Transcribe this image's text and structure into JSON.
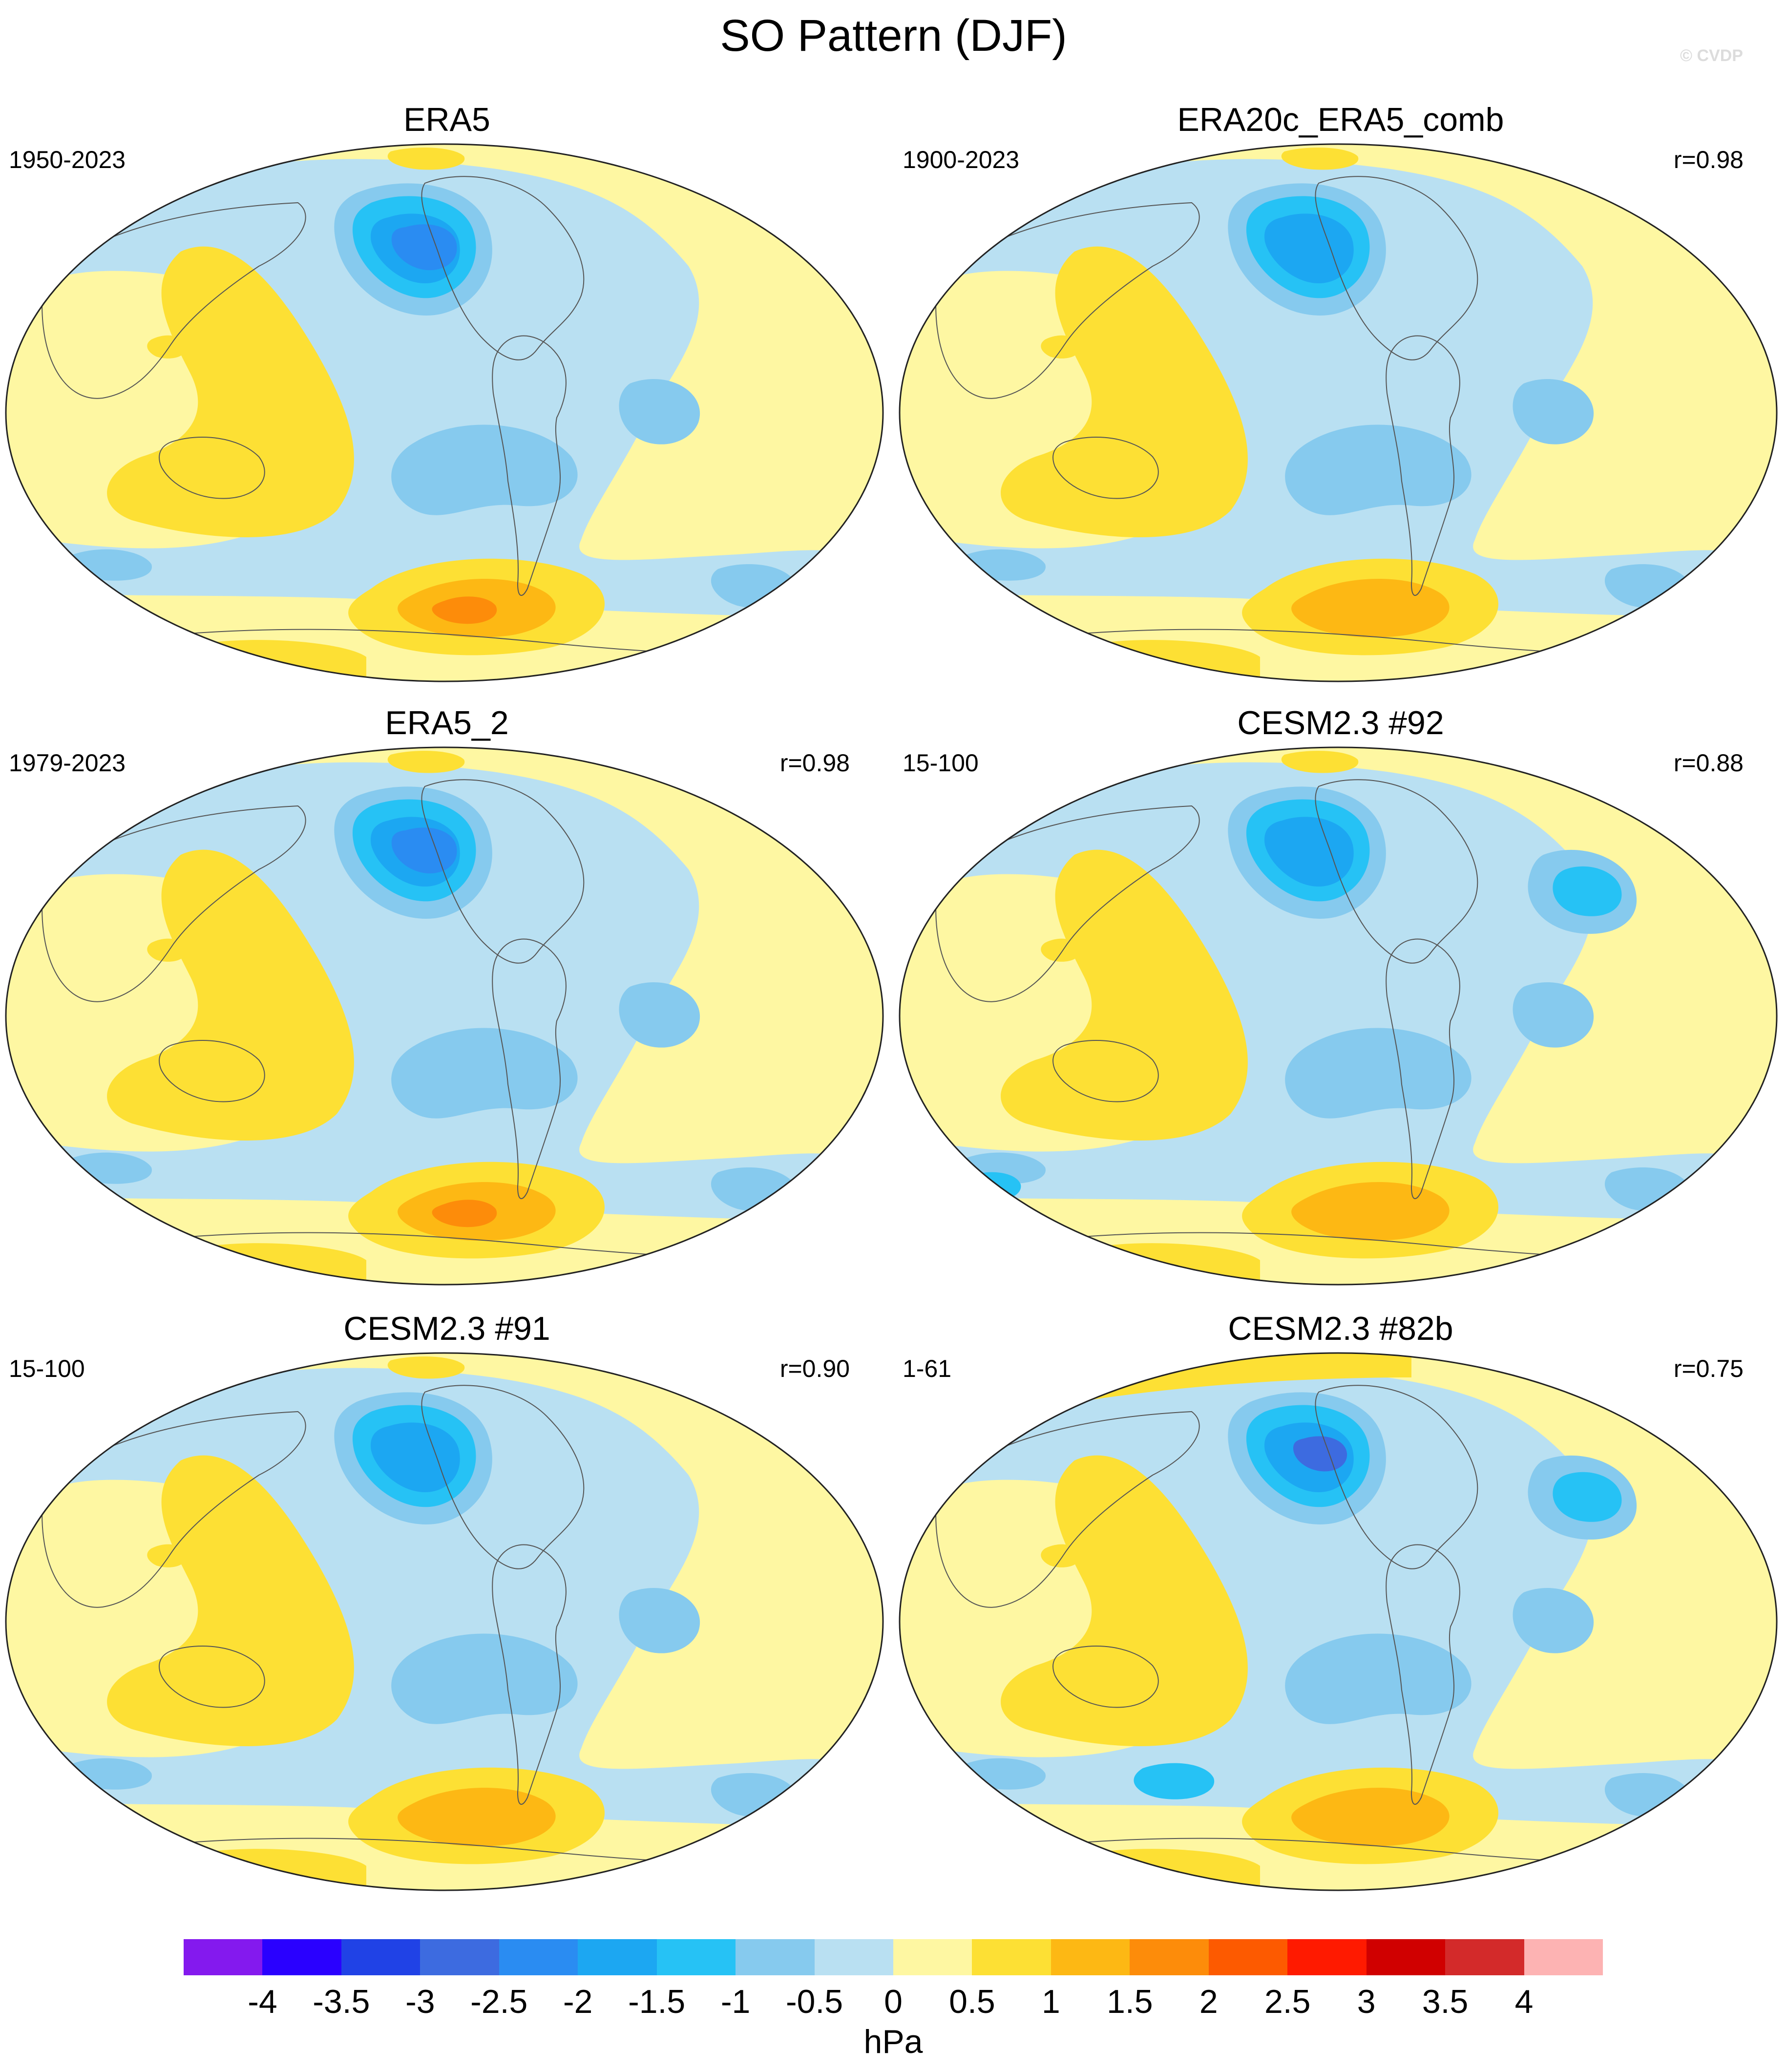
{
  "title": "SO Pattern (DJF)",
  "watermark": "© CVDP",
  "panels": [
    {
      "title": "ERA5",
      "period": "1950-2023",
      "correlation": ""
    },
    {
      "title": "ERA20c_ERA5_comb",
      "period": "1900-2023",
      "correlation": "r=0.98"
    },
    {
      "title": "ERA5_2",
      "period": "1979-2023",
      "correlation": "r=0.98"
    },
    {
      "title": "CESM2.3 #92",
      "period": "15-100",
      "correlation": "r=0.88"
    },
    {
      "title": "CESM2.3 #91",
      "period": "15-100",
      "correlation": "r=0.90"
    },
    {
      "title": "CESM2.3 #82b",
      "period": "1-61",
      "correlation": "r=0.75"
    }
  ],
  "colorbar": {
    "units": "hPa",
    "labels": [
      "-4",
      "-3.5",
      "-3",
      "-2.5",
      "-2",
      "-1.5",
      "-1",
      "-0.5",
      "0",
      "0.5",
      "1",
      "1.5",
      "2",
      "2.5",
      "3",
      "3.5",
      "4"
    ],
    "colors": [
      "#8419ee",
      "#2a00ff",
      "#2042e6",
      "#3d6be0",
      "#2a8cf2",
      "#1ca7f2",
      "#26c2f5",
      "#86caee",
      "#b9e0f2",
      "#fef7a2",
      "#fde034",
      "#fdb814",
      "#fd8c0a",
      "#fd5a00",
      "#ff1a00",
      "#d00000",
      "#d32a2a",
      "#fdb3b3"
    ]
  },
  "map_colors": {
    "ocean_default": "#b9e0f2",
    "neg_1": "#86caee",
    "neg_2": "#26c2f5",
    "neg_3": "#1ca7f2",
    "neg_4": "#2a8cf2",
    "neg_5": "#3d6be0",
    "pos_1": "#fef7a2",
    "pos_2": "#fde034",
    "pos_3": "#fdb814",
    "pos_4": "#fd8c0a"
  }
}
